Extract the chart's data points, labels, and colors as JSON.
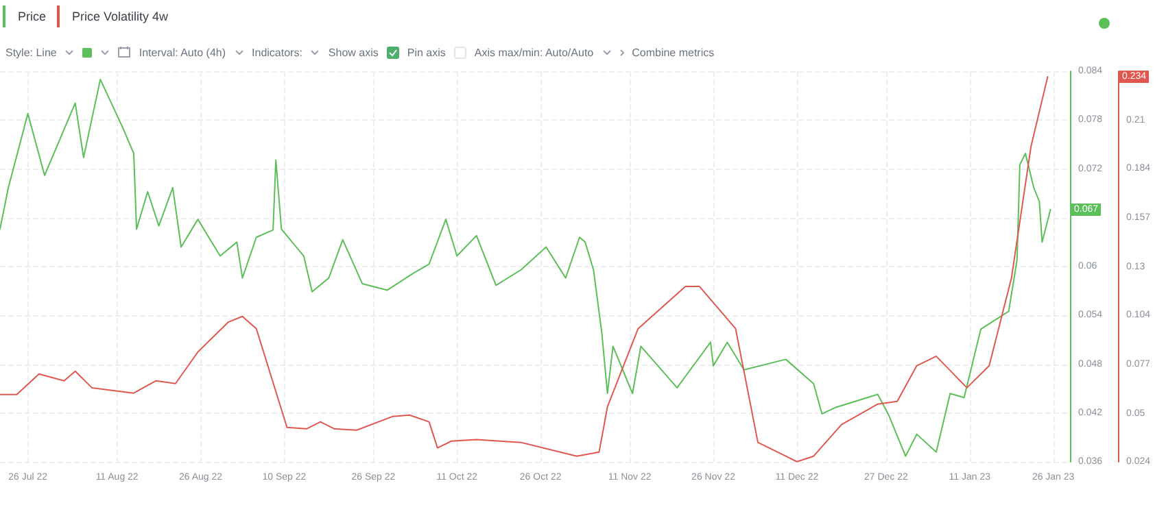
{
  "chart_data": {
    "type": "line",
    "legend": "top left",
    "grid": true,
    "marker": "none",
    "line_style": "solid",
    "xlim": [
      "2022-07-21",
      "2023-01-29"
    ],
    "xticks": [
      {
        "value": "2022-07-26",
        "label": "26 Jul 22"
      },
      {
        "value": "2022-08-11",
        "label": "11 Aug 22"
      },
      {
        "value": "2022-08-26",
        "label": "26 Aug 22"
      },
      {
        "value": "2022-09-10",
        "label": "10 Sep 22"
      },
      {
        "value": "2022-09-26",
        "label": "26 Sep 22"
      },
      {
        "value": "2022-10-11",
        "label": "11 Oct 22"
      },
      {
        "value": "2022-10-26",
        "label": "26 Oct 22"
      },
      {
        "value": "2022-11-11",
        "label": "11 Nov 22"
      },
      {
        "value": "2022-11-26",
        "label": "26 Nov 22"
      },
      {
        "value": "2022-12-11",
        "label": "11 Dec 22"
      },
      {
        "value": "2022-12-27",
        "label": "27 Dec 22"
      },
      {
        "value": "2023-01-11",
        "label": "11 Jan 23"
      },
      {
        "value": "2023-01-26",
        "label": "26 Jan 23"
      }
    ],
    "ylim": [
      0.036,
      0.084
    ],
    "yticks": [
      0.036,
      0.042,
      0.048,
      0.054,
      0.06,
      {
        "value": 0.066,
        "label": null
      },
      0.072,
      0.078,
      0.084
    ],
    "y2lim": [
      0.024,
      0.237
    ],
    "y2ticks": [
      0.024,
      0.05,
      0.077,
      0.104,
      0.13,
      0.157,
      0.184,
      0.21
    ],
    "series": [
      {
        "name": "Price",
        "color": "#5cbf5a",
        "x": [
          "2022-07-21T00:00",
          "2022-07-22T12:00",
          "2022-07-26T00:00",
          "2022-07-29T00:00",
          "2022-08-03T12:00",
          "2022-08-05T00:00",
          "2022-08-08T00:00",
          "2022-08-12T00:00",
          "2022-08-14T00:00",
          "2022-08-14T12:00",
          "2022-08-16T12:00",
          "2022-08-18T12:00",
          "2022-08-21T00:00",
          "2022-08-22T12:00",
          "2022-08-25T12:00",
          "2022-08-29T12:00",
          "2022-09-01T12:00",
          "2022-09-02T12:00",
          "2022-09-05T00:00",
          "2022-09-08T00:00",
          "2022-09-08T12:00",
          "2022-09-09T12:00",
          "2022-09-13T12:00",
          "2022-09-15T00:00",
          "2022-09-18T00:00",
          "2022-09-20T12:00",
          "2022-09-24T00:00",
          "2022-09-28T12:00",
          "2022-10-03T00:00",
          "2022-10-06T00:00",
          "2022-10-09T00:00",
          "2022-10-11T00:00",
          "2022-10-14T12:00",
          "2022-10-18T00:00",
          "2022-10-22T12:00",
          "2022-10-27T00:00",
          "2022-10-30T12:00",
          "2022-11-02T00:00",
          "2022-11-03T00:00",
          "2022-11-04T12:00",
          "2022-11-06T00:00",
          "2022-11-07T00:00",
          "2022-11-08T00:00",
          "2022-11-11T12:00",
          "2022-11-13T00:00",
          "2022-11-19T12:00",
          "2022-11-25T12:00",
          "2022-11-26T00:00",
          "2022-11-28T12:00",
          "2022-12-01T12:00",
          "2022-12-09T00:00",
          "2022-12-14T00:00",
          "2022-12-15T12:00",
          "2022-12-18T00:00",
          "2022-12-25T12:00",
          "2022-12-27T12:00",
          "2022-12-30T12:00",
          "2023-01-01T12:00",
          "2023-01-05T00:00",
          "2023-01-07T12:00",
          "2023-01-10T00:00",
          "2023-01-13T00:00",
          "2023-01-18T00:00",
          "2023-01-19T12:00",
          "2023-01-20T00:00",
          "2023-01-21T00:00",
          "2023-01-22T12:00",
          "2023-01-23T12:00",
          "2023-01-24T00:00",
          "2023-01-25T12:00"
        ],
        "values": [
          0.0646,
          0.0697,
          0.0788,
          0.0712,
          0.0801,
          0.0734,
          0.083,
          0.0771,
          0.0739,
          0.0646,
          0.0692,
          0.065,
          0.0697,
          0.0624,
          0.0658,
          0.0613,
          0.063,
          0.0586,
          0.0636,
          0.0645,
          0.0731,
          0.0646,
          0.0613,
          0.0569,
          0.0586,
          0.0633,
          0.0579,
          0.0571,
          0.0591,
          0.0603,
          0.0658,
          0.0613,
          0.0638,
          0.0577,
          0.0596,
          0.0624,
          0.0586,
          0.0636,
          0.063,
          0.0596,
          0.0518,
          0.0444,
          0.0502,
          0.0444,
          0.0502,
          0.0451,
          0.0507,
          0.0478,
          0.0507,
          0.0473,
          0.0486,
          0.0456,
          0.0419,
          0.0427,
          0.0443,
          0.0417,
          0.0367,
          0.0394,
          0.0372,
          0.0444,
          0.0439,
          0.0523,
          0.0545,
          0.0608,
          0.0725,
          0.0739,
          0.0697,
          0.068,
          0.063,
          0.067
        ]
      },
      {
        "name": "Price Volatility 4w",
        "color": "#e0574f",
        "axis": "y2",
        "x": [
          "2022-07-21T00:00",
          "2022-07-24T00:00",
          "2022-07-28T00:00",
          "2022-08-01T12:00",
          "2022-08-03T12:00",
          "2022-08-06T12:00",
          "2022-08-14T00:00",
          "2022-08-18T00:00",
          "2022-08-21T12:00",
          "2022-08-25T12:00",
          "2022-08-31T00:00",
          "2022-09-02T12:00",
          "2022-09-05T00:00",
          "2022-09-10T12:00",
          "2022-09-14T00:00",
          "2022-09-16T12:00",
          "2022-09-19T00:00",
          "2022-09-23T00:00",
          "2022-09-29T12:00",
          "2022-10-02T12:00",
          "2022-10-06T00:00",
          "2022-10-07T12:00",
          "2022-10-10T00:00",
          "2022-10-14T12:00",
          "2022-10-22T12:00",
          "2022-11-01T12:00",
          "2022-11-05T12:00",
          "2022-11-07T00:00",
          "2022-11-12T12:00",
          "2022-11-21T00:00",
          "2022-11-23T12:00",
          "2022-11-30T00:00",
          "2022-12-04T00:00",
          "2022-12-09T00:00",
          "2022-12-11T00:00",
          "2022-12-14T00:00",
          "2022-12-19T00:00",
          "2022-12-25T12:00",
          "2022-12-29T00:00",
          "2023-01-01T12:00",
          "2023-01-05T00:00",
          "2023-01-10T12:00",
          "2023-01-14T12:00",
          "2023-01-18T12:00",
          "2023-01-22T00:00",
          "2023-01-25T00:00"
        ],
        "values": [
          0.0607,
          0.0607,
          0.0719,
          0.0682,
          0.0734,
          0.0644,
          0.0615,
          0.0682,
          0.0667,
          0.0839,
          0.1003,
          0.1033,
          0.0966,
          0.0428,
          0.042,
          0.0458,
          0.042,
          0.0413,
          0.0488,
          0.0495,
          0.0458,
          0.0316,
          0.0353,
          0.0361,
          0.0346,
          0.0271,
          0.0293,
          0.054,
          0.0966,
          0.1197,
          0.1197,
          0.0966,
          0.0346,
          0.0271,
          0.0241,
          0.0271,
          0.0443,
          0.0555,
          0.057,
          0.0764,
          0.0816,
          0.0644,
          0.0764,
          0.1242,
          0.1959,
          0.234
        ]
      }
    ],
    "annotations": [
      "0.067",
      "0.234",
      "Style: Line",
      "Interval: Auto (4h)",
      "Indicators:",
      "Show axis",
      "Pin axis",
      "Axis max/min: Auto/Auto",
      "Combine metrics"
    ]
  }
}
